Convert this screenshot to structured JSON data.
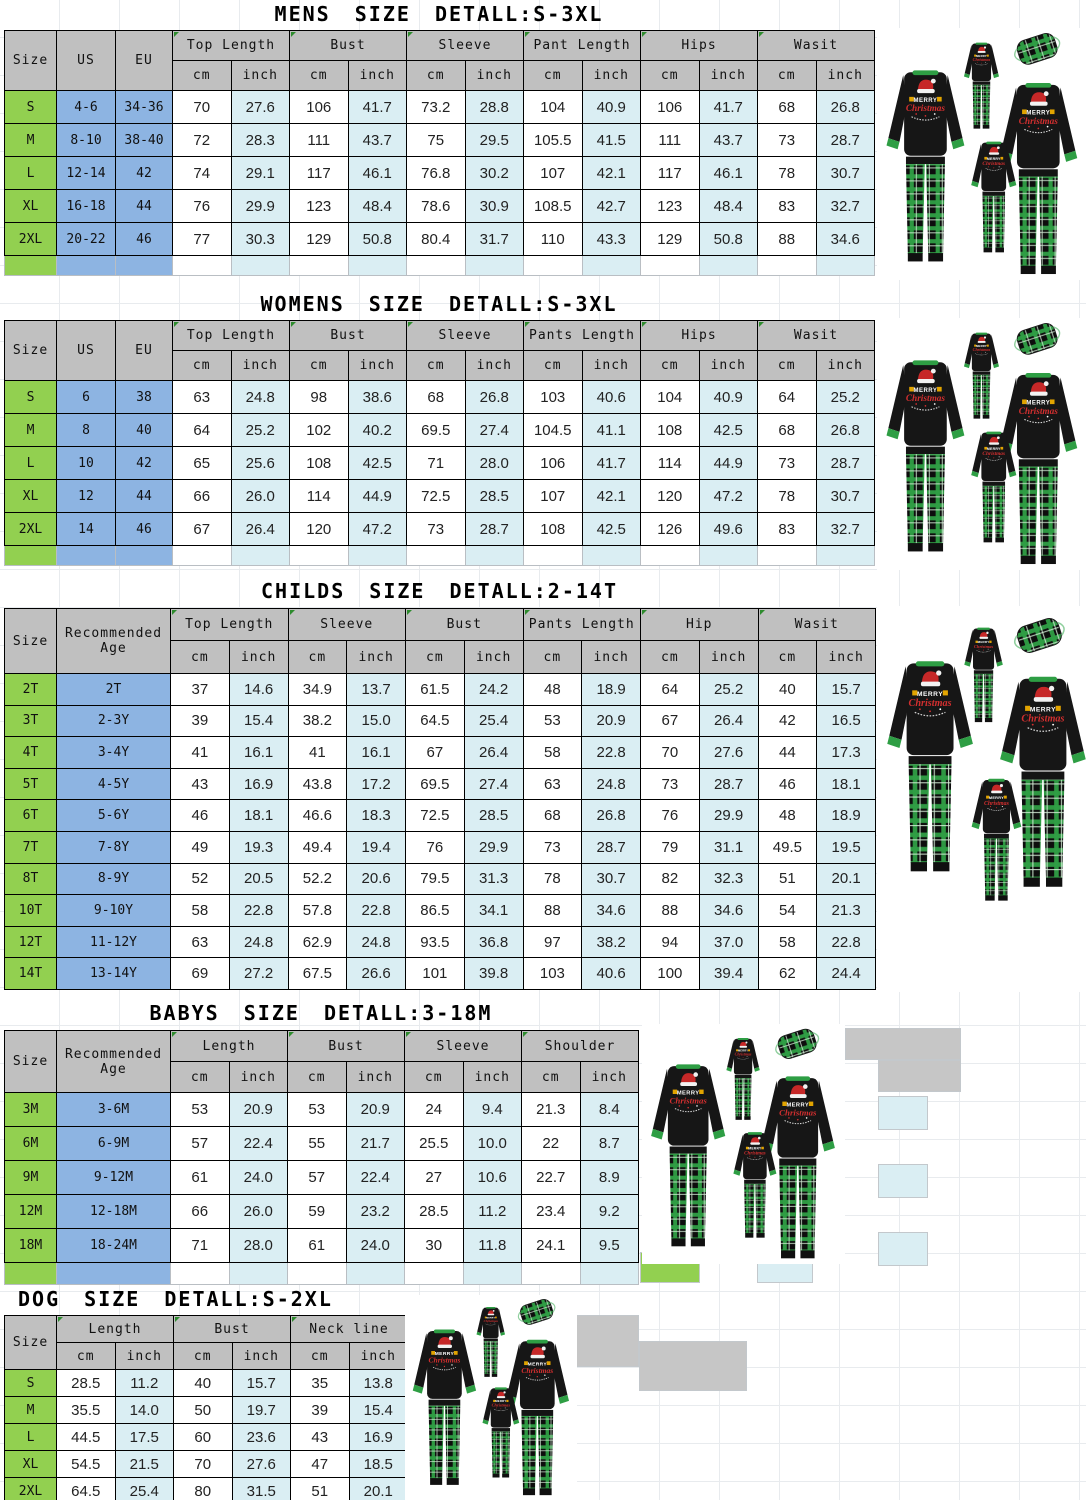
{
  "colors": {
    "size_col_green": "#92d050",
    "id_col_blue": "#8db4e2",
    "header_gray": "#c0c0c0",
    "inch_col_light_blue": "#daeef3",
    "border_black": "#000000",
    "pajama_black": "#151515",
    "pajama_trim_green": "#2e9e44",
    "plaid_green": "#2f9e44",
    "hat_red": "#c62828"
  },
  "photo_graphic": {
    "hat_icon": "santa-hat",
    "line1": "MERRY",
    "line2": "Christmas"
  },
  "stray_cell_value": "30",
  "tables": [
    {
      "id": "mens",
      "title": "MENS SIZE DETALL:S-3XL",
      "id_cols": [
        "Size",
        "US",
        "EU"
      ],
      "groups": [
        "Top Length",
        "Bust",
        "Sleeve",
        "Pant Length",
        "Hips",
        "Wasit"
      ],
      "sub": [
        "cm",
        "inch"
      ],
      "rows": [
        {
          "id": [
            "S",
            "4-6",
            "34-36"
          ],
          "values": [
            "70",
            "27.6",
            "106",
            "41.7",
            "73.2",
            "28.8",
            "104",
            "40.9",
            "106",
            "41.7",
            "68",
            "26.8"
          ]
        },
        {
          "id": [
            "M",
            "8-10",
            "38-40"
          ],
          "values": [
            "72",
            "28.3",
            "111",
            "43.7",
            "75",
            "29.5",
            "105.5",
            "41.5",
            "111",
            "43.7",
            "73",
            "28.7"
          ]
        },
        {
          "id": [
            "L",
            "12-14",
            "42"
          ],
          "values": [
            "74",
            "29.1",
            "117",
            "46.1",
            "76.8",
            "30.2",
            "107",
            "42.1",
            "117",
            "46.1",
            "78",
            "30.7"
          ]
        },
        {
          "id": [
            "XL",
            "16-18",
            "44"
          ],
          "values": [
            "76",
            "29.9",
            "123",
            "48.4",
            "78.6",
            "30.9",
            "108.5",
            "42.7",
            "123",
            "48.4",
            "83",
            "32.7"
          ]
        },
        {
          "id": [
            "2XL",
            "20-22",
            "46"
          ],
          "values": [
            "77",
            "30.3",
            "129",
            "50.8",
            "80.4",
            "31.7",
            "110",
            "43.3",
            "129",
            "50.8",
            "88",
            "34.6"
          ]
        }
      ]
    },
    {
      "id": "womens",
      "title": "WOMENS SIZE DETALL:S-3XL",
      "id_cols": [
        "Size",
        "US",
        "EU"
      ],
      "groups": [
        "Top Length",
        "Bust",
        "Sleeve",
        "Pants Length",
        "Hips",
        "Wasit"
      ],
      "sub": [
        "cm",
        "inch"
      ],
      "rows": [
        {
          "id": [
            "S",
            "6",
            "38"
          ],
          "values": [
            "63",
            "24.8",
            "98",
            "38.6",
            "68",
            "26.8",
            "103",
            "40.6",
            "104",
            "40.9",
            "64",
            "25.2"
          ]
        },
        {
          "id": [
            "M",
            "8",
            "40"
          ],
          "values": [
            "64",
            "25.2",
            "102",
            "40.2",
            "69.5",
            "27.4",
            "104.5",
            "41.1",
            "108",
            "42.5",
            "68",
            "26.8"
          ]
        },
        {
          "id": [
            "L",
            "10",
            "42"
          ],
          "values": [
            "65",
            "25.6",
            "108",
            "42.5",
            "71",
            "28.0",
            "106",
            "41.7",
            "114",
            "44.9",
            "73",
            "28.7"
          ]
        },
        {
          "id": [
            "XL",
            "12",
            "44"
          ],
          "values": [
            "66",
            "26.0",
            "114",
            "44.9",
            "72.5",
            "28.5",
            "107",
            "42.1",
            "120",
            "47.2",
            "78",
            "30.7"
          ]
        },
        {
          "id": [
            "2XL",
            "14",
            "46"
          ],
          "values": [
            "67",
            "26.4",
            "120",
            "47.2",
            "73",
            "28.7",
            "108",
            "42.5",
            "126",
            "49.6",
            "83",
            "32.7"
          ]
        }
      ]
    },
    {
      "id": "childs",
      "title": "CHILDS SIZE DETALL:2-14T",
      "id_cols": [
        "Size",
        "Recommended Age"
      ],
      "groups": [
        "Top Length",
        "Sleeve",
        "Bust",
        "Pants Length",
        "Hip",
        "Wasit"
      ],
      "sub": [
        "cm",
        "inch"
      ],
      "rows": [
        {
          "id": [
            "2T",
            "2T"
          ],
          "values": [
            "37",
            "14.6",
            "34.9",
            "13.7",
            "61.5",
            "24.2",
            "48",
            "18.9",
            "64",
            "25.2",
            "40",
            "15.7"
          ]
        },
        {
          "id": [
            "3T",
            "2-3Y"
          ],
          "values": [
            "39",
            "15.4",
            "38.2",
            "15.0",
            "64.5",
            "25.4",
            "53",
            "20.9",
            "67",
            "26.4",
            "42",
            "16.5"
          ]
        },
        {
          "id": [
            "4T",
            "3-4Y"
          ],
          "values": [
            "41",
            "16.1",
            "41",
            "16.1",
            "67",
            "26.4",
            "58",
            "22.8",
            "70",
            "27.6",
            "44",
            "17.3"
          ]
        },
        {
          "id": [
            "5T",
            "4-5Y"
          ],
          "values": [
            "43",
            "16.9",
            "43.8",
            "17.2",
            "69.5",
            "27.4",
            "63",
            "24.8",
            "73",
            "28.7",
            "46",
            "18.1"
          ]
        },
        {
          "id": [
            "6T",
            "5-6Y"
          ],
          "values": [
            "46",
            "18.1",
            "46.6",
            "18.3",
            "72.5",
            "28.5",
            "68",
            "26.8",
            "76",
            "29.9",
            "48",
            "18.9"
          ]
        },
        {
          "id": [
            "7T",
            "7-8Y"
          ],
          "values": [
            "49",
            "19.3",
            "49.4",
            "19.4",
            "76",
            "29.9",
            "73",
            "28.7",
            "79",
            "31.1",
            "49.5",
            "19.5"
          ]
        },
        {
          "id": [
            "8T",
            "8-9Y"
          ],
          "values": [
            "52",
            "20.5",
            "52.2",
            "20.6",
            "79.5",
            "31.3",
            "78",
            "30.7",
            "82",
            "32.3",
            "51",
            "20.1"
          ]
        },
        {
          "id": [
            "10T",
            "9-10Y"
          ],
          "values": [
            "58",
            "22.8",
            "57.8",
            "22.8",
            "86.5",
            "34.1",
            "88",
            "34.6",
            "88",
            "34.6",
            "54",
            "21.3"
          ]
        },
        {
          "id": [
            "12T",
            "11-12Y"
          ],
          "values": [
            "63",
            "24.8",
            "62.9",
            "24.8",
            "93.5",
            "36.8",
            "97",
            "38.2",
            "94",
            "37.0",
            "58",
            "22.8"
          ]
        },
        {
          "id": [
            "14T",
            "13-14Y"
          ],
          "values": [
            "69",
            "27.2",
            "67.5",
            "26.6",
            "101",
            "39.8",
            "103",
            "40.6",
            "100",
            "39.4",
            "62",
            "24.4"
          ]
        }
      ]
    },
    {
      "id": "babys",
      "title": "BABYS SIZE DETALL:3-18M",
      "id_cols": [
        "Size",
        "Recommended Age"
      ],
      "groups": [
        "Length",
        "Bust",
        "Sleeve",
        "Shoulder"
      ],
      "sub": [
        "cm",
        "inch"
      ],
      "rows": [
        {
          "id": [
            "3M",
            "3-6M"
          ],
          "values": [
            "53",
            "20.9",
            "53",
            "20.9",
            "24",
            "9.4",
            "21.3",
            "8.4"
          ]
        },
        {
          "id": [
            "6M",
            "6-9M"
          ],
          "values": [
            "57",
            "22.4",
            "55",
            "21.7",
            "25.5",
            "10.0",
            "22",
            "8.7"
          ]
        },
        {
          "id": [
            "9M",
            "9-12M"
          ],
          "values": [
            "61",
            "24.0",
            "57",
            "22.4",
            "27",
            "10.6",
            "22.7",
            "8.9"
          ]
        },
        {
          "id": [
            "12M",
            "12-18M"
          ],
          "values": [
            "66",
            "26.0",
            "59",
            "23.2",
            "28.5",
            "11.2",
            "23.4",
            "9.2"
          ]
        },
        {
          "id": [
            "18M",
            "18-24M"
          ],
          "values": [
            "71",
            "28.0",
            "61",
            "24.0",
            "30",
            "11.8",
            "24.1",
            "9.5"
          ]
        }
      ]
    },
    {
      "id": "dog",
      "title": "DOG SIZE DETALL:S-2XL",
      "id_cols": [
        "Size"
      ],
      "groups": [
        "Length",
        "Bust",
        "Neck line"
      ],
      "sub": [
        "cm",
        "inch"
      ],
      "rows": [
        {
          "id": [
            "S"
          ],
          "values": [
            "28.5",
            "11.2",
            "40",
            "15.7",
            "35",
            "13.8"
          ]
        },
        {
          "id": [
            "M"
          ],
          "values": [
            "35.5",
            "14.0",
            "50",
            "19.7",
            "39",
            "15.4"
          ]
        },
        {
          "id": [
            "L"
          ],
          "values": [
            "44.5",
            "17.5",
            "60",
            "23.6",
            "43",
            "16.9"
          ]
        },
        {
          "id": [
            "XL"
          ],
          "values": [
            "54.5",
            "21.5",
            "70",
            "27.6",
            "47",
            "18.5"
          ]
        },
        {
          "id": [
            "2XL"
          ],
          "values": [
            "64.5",
            "25.4",
            "80",
            "31.5",
            "51",
            "20.1"
          ]
        }
      ]
    }
  ]
}
